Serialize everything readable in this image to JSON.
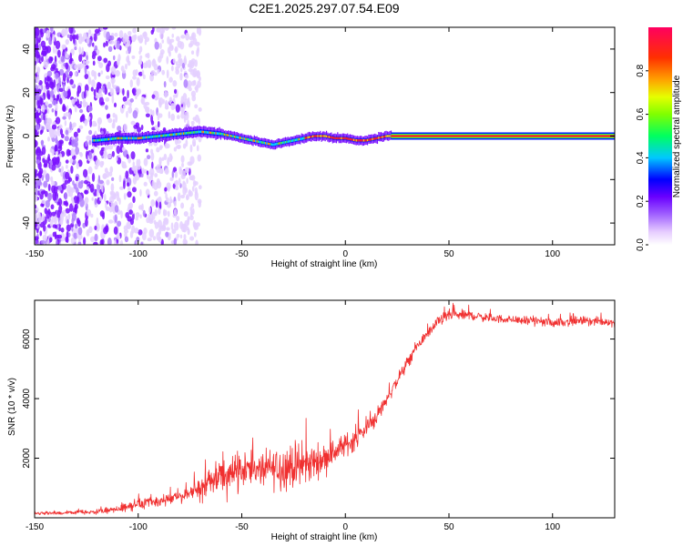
{
  "page_title": "C2E1.2025.297.07.54.E09",
  "chart_data": [
    {
      "type": "heatmap",
      "name": "spectrogram",
      "xlabel": "Height of straight line (km)",
      "ylabel": "Frequency (Hz)",
      "xlim": [
        -150,
        130
      ],
      "ylim": [
        -50,
        50
      ],
      "x_ticks": [
        -150,
        -100,
        -50,
        0,
        50,
        100
      ],
      "y_ticks": [
        -40,
        -20,
        0,
        20,
        40
      ],
      "colorbar": {
        "label": "Normalized spectral amplitude",
        "range": [
          0,
          1
        ],
        "ticks": [
          0.0,
          0.2,
          0.4,
          0.6,
          0.8
        ],
        "colors": [
          "#ffffff",
          "#b080ff",
          "#7000ff",
          "#0000ff",
          "#00c0ff",
          "#00ff40",
          "#c0ff00",
          "#ffb000",
          "#ff3000",
          "#ff0060"
        ]
      },
      "signal_track": {
        "x": [
          -120,
          -110,
          -100,
          -90,
          -80,
          -70,
          -60,
          -55,
          -50,
          -45,
          -40,
          -35,
          -30,
          -25,
          -20,
          -15,
          -10,
          -5,
          0,
          5,
          10,
          15,
          20,
          25,
          130
        ],
        "freq": [
          -2,
          -1,
          -1,
          0,
          1,
          2,
          1,
          0,
          -1,
          -2,
          -3,
          -4,
          -3,
          -2,
          -1,
          0,
          0,
          -1,
          -1,
          -2,
          -2,
          -1,
          0,
          0,
          0
        ]
      }
    },
    {
      "type": "line",
      "name": "snr",
      "xlabel": "Height of straight line (km)",
      "ylabel": "SNR (10 * v/v)",
      "xlim": [
        -150,
        130
      ],
      "ylim": [
        0,
        7300
      ],
      "x_ticks": [
        -150,
        -100,
        -50,
        0,
        50,
        100
      ],
      "y_ticks": [
        2000,
        4000,
        6000
      ],
      "color": "#f03030",
      "series": [
        {
          "name": "SNR",
          "x": [
            -150,
            -140,
            -130,
            -120,
            -110,
            -100,
            -90,
            -80,
            -70,
            -60,
            -50,
            -40,
            -30,
            -20,
            -10,
            0,
            5,
            10,
            15,
            20,
            25,
            30,
            35,
            40,
            45,
            50,
            60,
            70,
            80,
            90,
            100,
            110,
            120,
            130
          ],
          "y": [
            150,
            150,
            180,
            200,
            300,
            450,
            550,
            700,
            1000,
            1400,
            1700,
            1600,
            1700,
            1750,
            2000,
            2450,
            2650,
            3000,
            3400,
            4000,
            4600,
            5200,
            5800,
            6200,
            6600,
            6800,
            6800,
            6700,
            6650,
            6600,
            6550,
            6600,
            6600,
            6550
          ]
        }
      ],
      "spike_envelope": {
        "x": [
          -150,
          -120,
          -110,
          -100,
          -80,
          -70,
          -60,
          -55,
          -50,
          -45,
          -40,
          -30,
          -20,
          -10,
          0,
          10,
          20,
          30,
          40,
          50,
          60,
          80,
          100,
          130
        ],
        "amp": [
          80,
          120,
          200,
          250,
          300,
          500,
          900,
          1300,
          1100,
          700,
          900,
          1200,
          1100,
          700,
          600,
          500,
          400,
          300,
          250,
          300,
          250,
          200,
          250,
          200
        ]
      }
    }
  ]
}
